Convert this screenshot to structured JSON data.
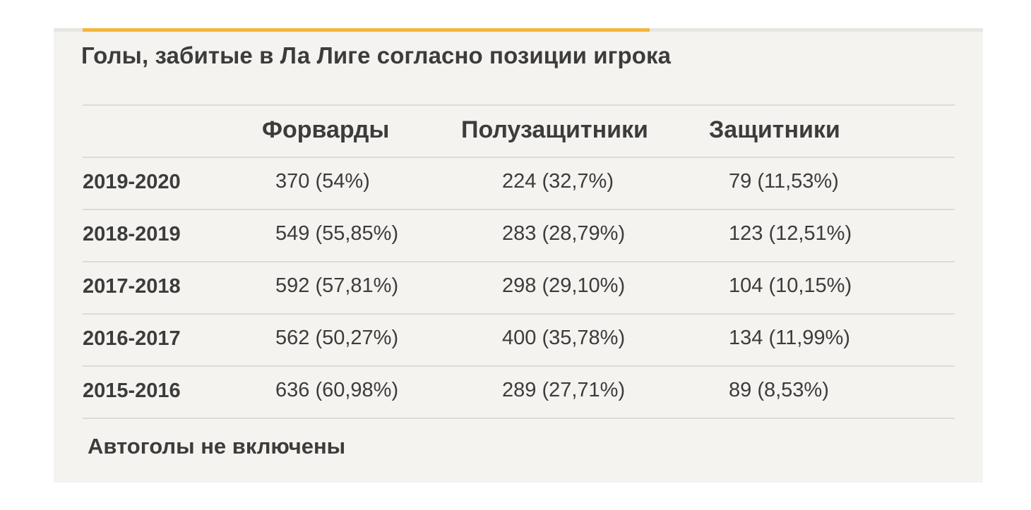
{
  "title": "Голы, забитые в Ла Лиге согласно позиции игрока",
  "columns": [
    "Форварды",
    "Полузащитники",
    "Защитники"
  ],
  "rows": [
    {
      "season": "2019-2020",
      "forwards": "370 (54%)",
      "midfielders": "224 (32,7%)",
      "defenders": "79 (11,53%)"
    },
    {
      "season": "2018-2019",
      "forwards": "549 (55,85%)",
      "midfielders": "283 (28,79%)",
      "defenders": "123 (12,51%)"
    },
    {
      "season": "2017-2018",
      "forwards": "592 (57,81%)",
      "midfielders": "298 (29,10%)",
      "defenders": "104 (10,15%)"
    },
    {
      "season": "2016-2017",
      "forwards": "562 (50,27%)",
      "midfielders": "400 (35,78%)",
      "defenders": "134 (11,99%)"
    },
    {
      "season": "2015-2016",
      "forwards": "636 (60,98%)",
      "midfielders": "289 (27,71%)",
      "defenders": "89 (8,53%)"
    }
  ],
  "note": "Автоголы не включены",
  "colors": {
    "accent": "#f5b63b",
    "background": "#f4f3f0",
    "text": "#3c3c3c",
    "rule": "#dcdbd7"
  }
}
